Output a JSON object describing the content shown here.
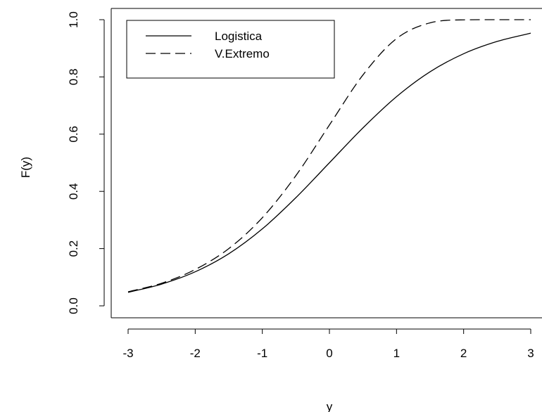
{
  "chart_data": {
    "type": "line",
    "title": "",
    "xlabel": "y",
    "ylabel": "F(y)",
    "xlim": [
      -3,
      3
    ],
    "ylim": [
      0,
      1
    ],
    "x_ticks": [
      -3,
      -2,
      -1,
      0,
      1,
      2,
      3
    ],
    "y_ticks": [
      0.0,
      0.2,
      0.4,
      0.6,
      0.8,
      1.0
    ],
    "x_tick_labels": [
      "-3",
      "-2",
      "-1",
      "0",
      "1",
      "2",
      "3"
    ],
    "y_tick_labels": [
      "0.0",
      "0.2",
      "0.4",
      "0.6",
      "0.8",
      "1.0"
    ],
    "grid": false,
    "legend_position": "top-left",
    "x": [
      -3.0,
      -2.5,
      -2.0,
      -1.5,
      -1.0,
      -0.5,
      0.0,
      0.5,
      1.0,
      1.5,
      2.0,
      2.5,
      3.0
    ],
    "series": [
      {
        "name": "Logistica",
        "line_style": "solid",
        "color": "#000000",
        "values": [
          0.047,
          0.076,
          0.119,
          0.182,
          0.269,
          0.378,
          0.5,
          0.622,
          0.731,
          0.818,
          0.881,
          0.924,
          0.953
        ]
      },
      {
        "name": "V.Extremo",
        "line_style": "dashed",
        "color": "#000000",
        "values": [
          0.049,
          0.079,
          0.127,
          0.2,
          0.308,
          0.455,
          0.632,
          0.807,
          0.934,
          0.989,
          0.9994,
          1.0,
          1.0
        ]
      }
    ]
  }
}
